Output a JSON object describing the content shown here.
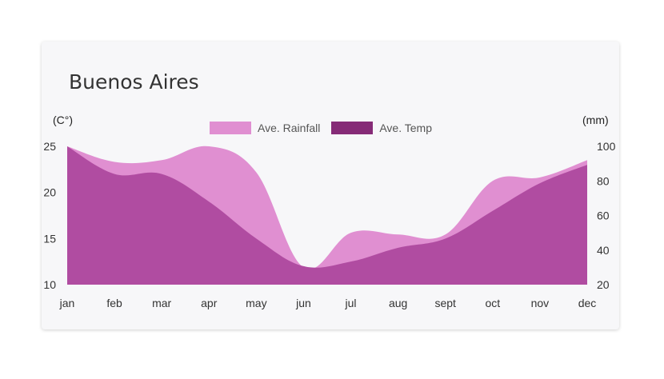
{
  "card": {
    "title": "Buenos Aires",
    "left_unit": "(C°)",
    "right_unit": "(mm)"
  },
  "chart_data": {
    "type": "area",
    "title": "Buenos Aires",
    "categories": [
      "jan",
      "feb",
      "mar",
      "apr",
      "may",
      "jun",
      "jul",
      "aug",
      "sept",
      "oct",
      "nov",
      "dec"
    ],
    "left_axis": {
      "label": "(C°)",
      "ticks": [
        10,
        15,
        20,
        25
      ],
      "range": [
        10,
        25
      ]
    },
    "right_axis": {
      "label": "(mm)",
      "ticks": [
        20,
        40,
        60,
        80,
        100
      ],
      "range": [
        20,
        100
      ]
    },
    "series": [
      {
        "name": "Ave. Rainfall",
        "axis": "right",
        "color": "#e08fd1",
        "values": [
          100,
          91,
          92,
          100,
          85,
          30,
          50,
          49,
          49,
          80,
          82,
          92
        ]
      },
      {
        "name": "Ave. Temp",
        "axis": "left",
        "color": "#862b77",
        "values": [
          25,
          22,
          22,
          19,
          15,
          12,
          12.5,
          14,
          15,
          18,
          21,
          23
        ]
      }
    ],
    "fill_colors": {
      "rainfall": "#e08fd1",
      "temp": "#b04ca1"
    },
    "legend_position": "top-center",
    "grid": false
  }
}
